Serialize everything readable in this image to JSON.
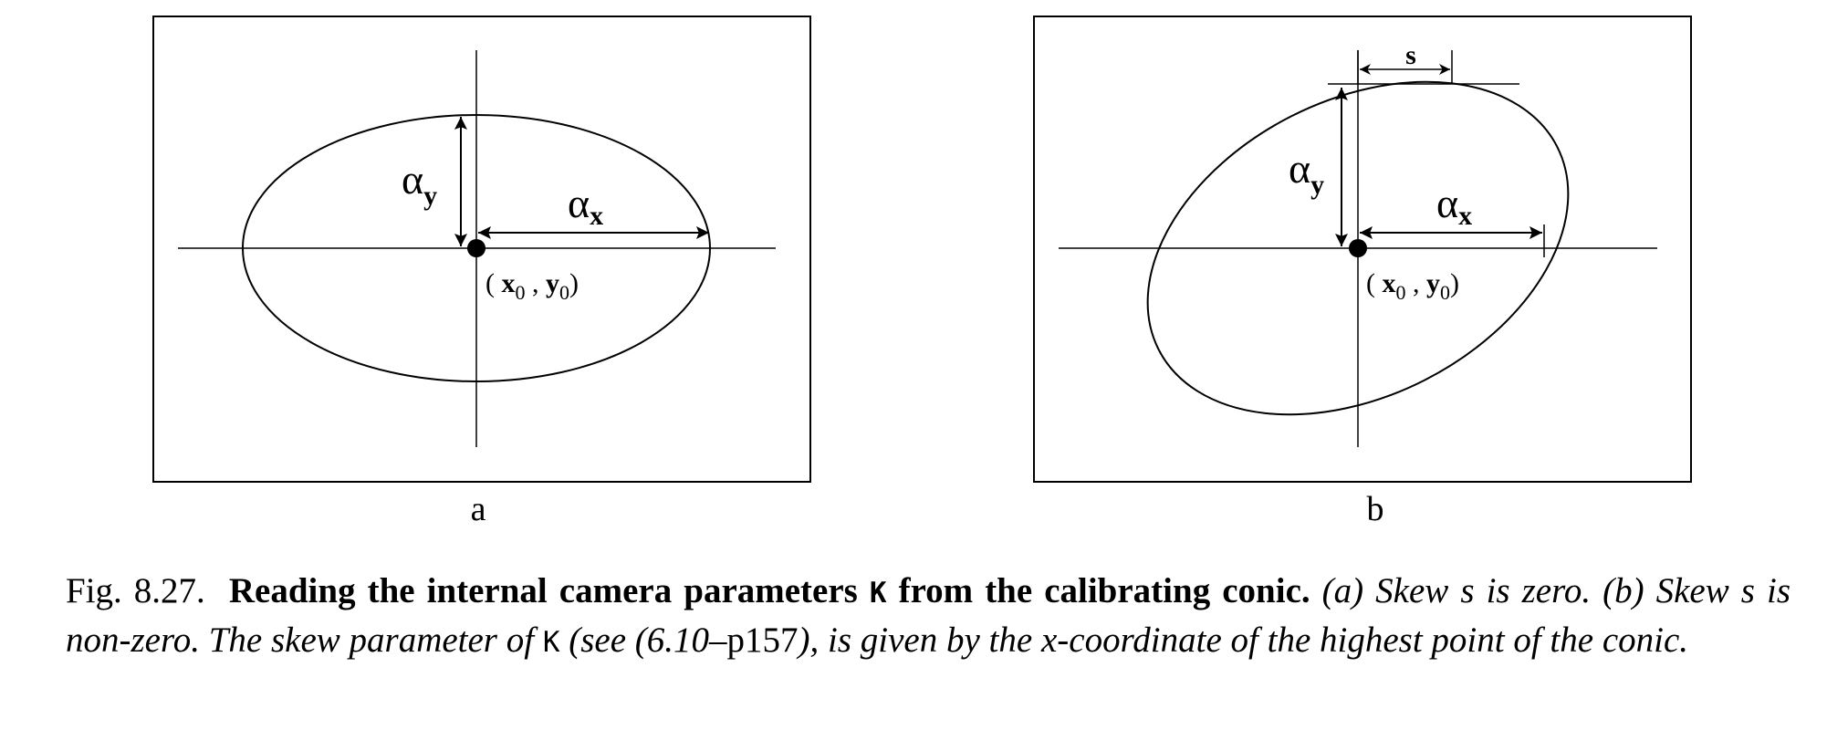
{
  "panels": {
    "a": {
      "label": "a",
      "alpha_y": "α",
      "alpha_y_sub": "y",
      "alpha_x": "α",
      "alpha_x_sub": "x",
      "point_open": "( ",
      "point_x": "x",
      "point_x_sub": "0",
      "point_sep": " , ",
      "point_y": "y",
      "point_y_sub": "0",
      "point_close": ")"
    },
    "b": {
      "label": "b",
      "alpha_y": "α",
      "alpha_y_sub": "y",
      "alpha_x": "α",
      "alpha_x_sub": "x",
      "skew": "s",
      "point_open": "( ",
      "point_x": "x",
      "point_x_sub": "0",
      "point_sep": " , ",
      "point_y": "y",
      "point_y_sub": "0",
      "point_close": ")"
    }
  },
  "caption": {
    "fig_number": "Fig. 8.27.",
    "title_part1": "Reading the internal camera parameters",
    "title_K": "K",
    "title_part2": "from the calibrating conic.",
    "text_a": "(a) Skew",
    "text_s1": "s",
    "text_a2": "is zero. (b) Skew",
    "text_s2": "s",
    "text_b2": "is non-zero. The skew parameter of",
    "text_K": "K",
    "text_see": "(see (6.10–",
    "text_page": "p157",
    "text_rest": "), is given by the",
    "text_x": "x",
    "text_end": "-coordinate of the highest point of the conic."
  }
}
